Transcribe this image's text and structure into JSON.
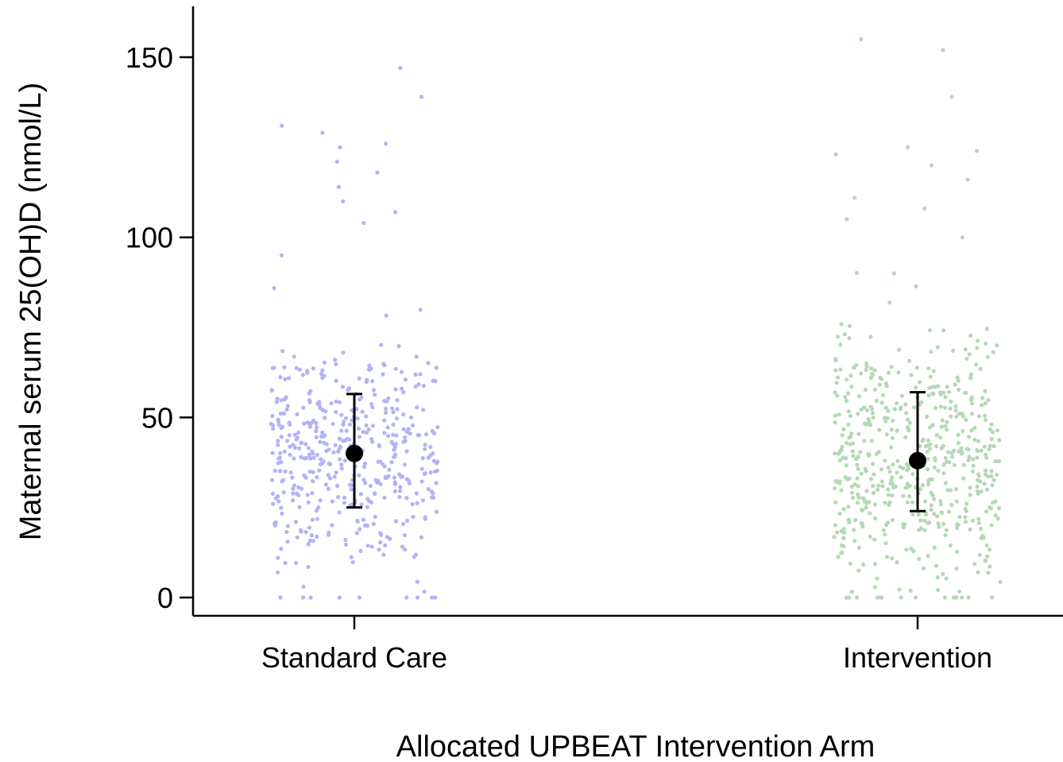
{
  "chart_data": {
    "type": "scatter",
    "subtype": "jittered strip plot with mean and error bars",
    "title": "",
    "xlabel": "Allocated UPBEAT Intervention Arm",
    "ylabel": "Maternal serum 25(OH)D (nmol/L)",
    "categories": [
      "Standard Care",
      "Intervention"
    ],
    "ylim": [
      -5,
      165
    ],
    "yticks": [
      0,
      50,
      100,
      150
    ],
    "grid": false,
    "legend": "none",
    "series": [
      {
        "category": "Standard Care",
        "color": "#b3b3f5",
        "n_points": 480,
        "mean": 40,
        "error_low": 25,
        "error_high": 56.5,
        "notable_values": [
          0,
          0,
          0,
          0,
          0,
          3,
          7,
          95,
          104,
          107,
          110,
          114,
          118,
          121,
          125,
          126,
          129,
          131,
          139,
          147
        ]
      },
      {
        "category": "Intervention",
        "color": "#b4d9b4",
        "n_points": 560,
        "mean": 38,
        "error_low": 24,
        "error_high": 57,
        "notable_values": [
          0,
          0,
          0,
          0,
          0,
          0,
          0,
          100,
          105,
          108,
          111,
          116,
          120,
          123,
          124,
          125,
          139,
          152,
          155
        ]
      }
    ],
    "summary_marker_color": "#000000"
  }
}
